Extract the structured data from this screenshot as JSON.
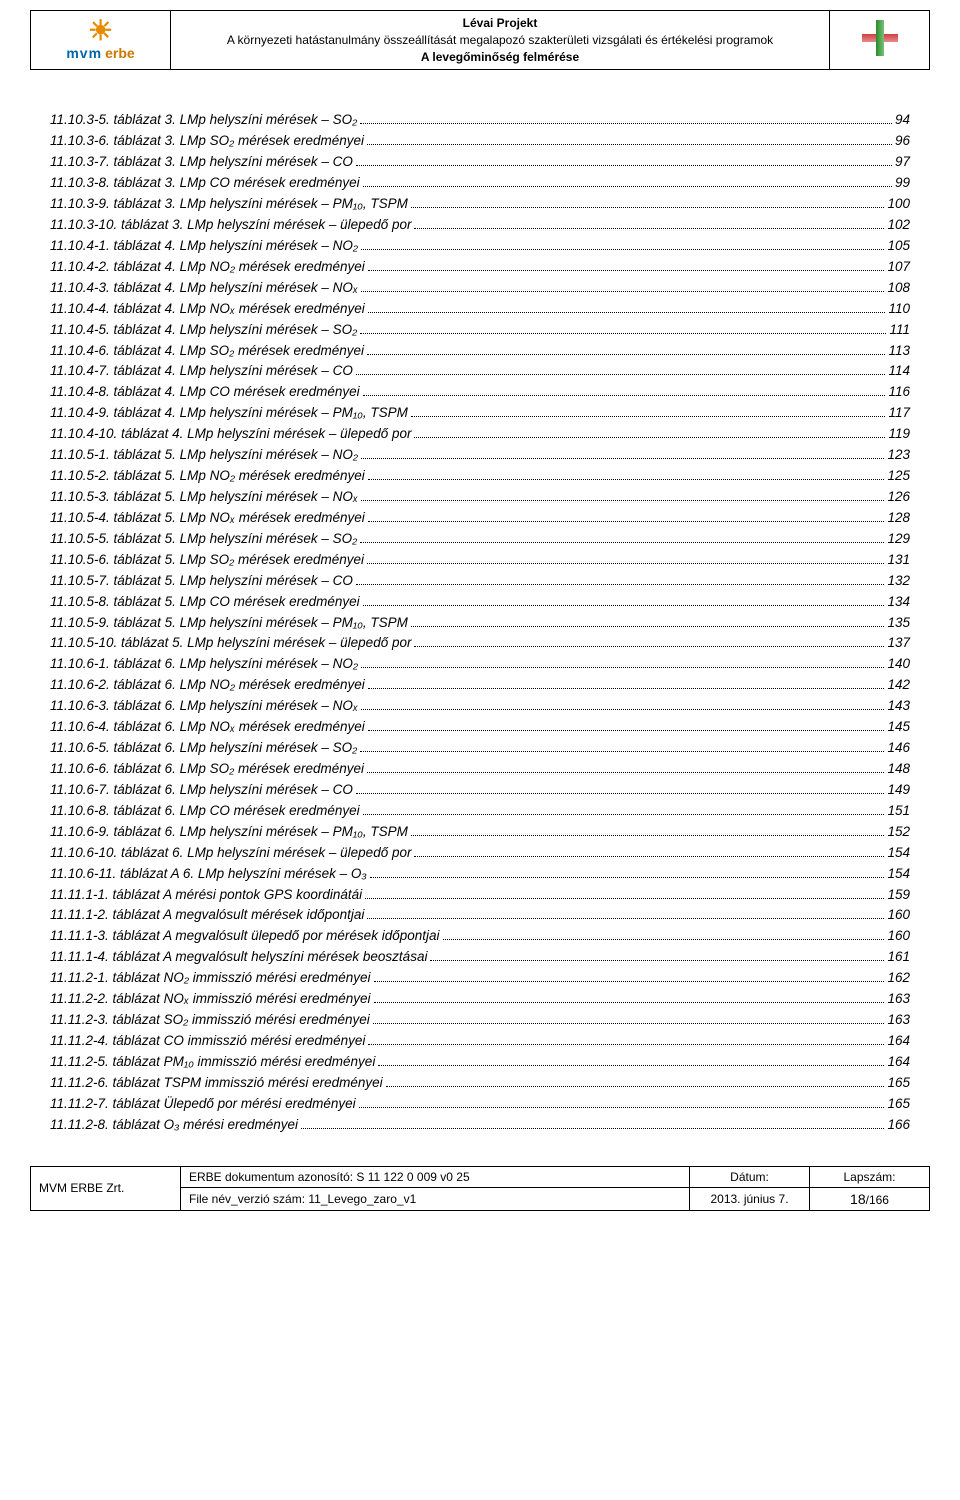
{
  "header": {
    "title_bold": "Lévai Projekt",
    "title_line2": "A környezeti hatástanulmány összeállítását megalapozó szakterületi vizsgálati és értékelési programok",
    "title_line3": "A levegőminőség felmérése",
    "mvm": "mvm",
    "erbe": "erbe"
  },
  "toc": [
    {
      "label": "11.10.3-5. táblázat 3. LMp helyszíni mérések – SO₂",
      "page": "94"
    },
    {
      "label": "11.10.3-6. táblázat 3. LMp SO₂ mérések eredményei",
      "page": "96"
    },
    {
      "label": "11.10.3-7. táblázat 3. LMp helyszíni mérések – CO",
      "page": "97"
    },
    {
      "label": "11.10.3-8. táblázat 3. LMp CO mérések eredményei",
      "page": "99"
    },
    {
      "label": "11.10.3-9. táblázat 3. LMp helyszíni mérések – PM₁₀, TSPM",
      "page": "100"
    },
    {
      "label": "11.10.3-10. táblázat 3. LMp helyszíni mérések – ülepedő por",
      "page": "102"
    },
    {
      "label": "11.10.4-1. táblázat 4. LMp helyszíni mérések – NO₂",
      "page": "105"
    },
    {
      "label": "11.10.4-2. táblázat 4. LMp NO₂ mérések eredményei",
      "page": "107"
    },
    {
      "label": "11.10.4-3. táblázat 4. LMp helyszíni mérések – NOₓ",
      "page": "108"
    },
    {
      "label": "11.10.4-4. táblázat 4. LMp NOₓ mérések eredményei",
      "page": "110"
    },
    {
      "label": "11.10.4-5. táblázat 4. LMp helyszíni mérések – SO₂",
      "page": "111"
    },
    {
      "label": "11.10.4-6. táblázat 4. LMp SO₂ mérések eredményei",
      "page": "113"
    },
    {
      "label": "11.10.4-7. táblázat 4. LMp helyszíni mérések – CO",
      "page": "114"
    },
    {
      "label": "11.10.4-8. táblázat 4. LMp CO mérések eredményei",
      "page": "116"
    },
    {
      "label": "11.10.4-9. táblázat 4. LMp helyszíni mérések – PM₁₀, TSPM",
      "page": "117"
    },
    {
      "label": "11.10.4-10. táblázat 4. LMp helyszíni mérések – ülepedő por",
      "page": "119"
    },
    {
      "label": "11.10.5-1. táblázat 5. LMp helyszíni mérések – NO₂",
      "page": "123"
    },
    {
      "label": "11.10.5-2. táblázat 5. LMp NO₂ mérések eredményei",
      "page": "125"
    },
    {
      "label": "11.10.5-3. táblázat 5. LMp helyszíni mérések – NOₓ",
      "page": "126"
    },
    {
      "label": "11.10.5-4. táblázat 5. LMp NOₓ mérések eredményei",
      "page": "128"
    },
    {
      "label": "11.10.5-5. táblázat 5. LMp helyszíni mérések – SO₂",
      "page": "129"
    },
    {
      "label": "11.10.5-6. táblázat 5. LMp SO₂ mérések eredményei",
      "page": "131"
    },
    {
      "label": "11.10.5-7. táblázat 5. LMp helyszíni mérések – CO",
      "page": "132"
    },
    {
      "label": "11.10.5-8. táblázat 5. LMp CO mérések eredményei",
      "page": "134"
    },
    {
      "label": "11.10.5-9. táblázat 5. LMp helyszíni mérések – PM₁₀, TSPM",
      "page": "135"
    },
    {
      "label": "11.10.5-10. táblázat 5. LMp helyszíni mérések – ülepedő por",
      "page": "137"
    },
    {
      "label": "11.10.6-1. táblázat 6. LMp helyszíni mérések – NO₂",
      "page": "140"
    },
    {
      "label": "11.10.6-2. táblázat 6. LMp NO₂ mérések eredményei",
      "page": "142"
    },
    {
      "label": "11.10.6-3. táblázat 6. LMp helyszíni mérések – NOₓ",
      "page": "143"
    },
    {
      "label": "11.10.6-4. táblázat 6. LMp NOₓ mérések eredményei",
      "page": "145"
    },
    {
      "label": "11.10.6-5. táblázat 6. LMp helyszíni mérések – SO₂",
      "page": "146"
    },
    {
      "label": "11.10.6-6. táblázat 6. LMp SO₂ mérések eredményei",
      "page": "148"
    },
    {
      "label": "11.10.6-7. táblázat 6. LMp helyszíni mérések – CO",
      "page": "149"
    },
    {
      "label": "11.10.6-8. táblázat 6. LMp CO mérések eredményei",
      "page": "151"
    },
    {
      "label": "11.10.6-9. táblázat 6. LMp helyszíni mérések – PM₁₀, TSPM",
      "page": "152"
    },
    {
      "label": "11.10.6-10. táblázat 6. LMp helyszíni mérések – ülepedő por",
      "page": "154"
    },
    {
      "label": "11.10.6-11. táblázat A 6. LMp helyszíni mérések – O₃",
      "page": "154"
    },
    {
      "label": "11.11.1-1. táblázat A mérési pontok GPS koordinátái",
      "page": "159"
    },
    {
      "label": "11.11.1-2. táblázat A megvalósult mérések időpontjai",
      "page": "160"
    },
    {
      "label": "11.11.1-3. táblázat A megvalósult ülepedő por mérések időpontjai",
      "page": "160"
    },
    {
      "label": "11.11.1-4. táblázat A megvalósult helyszíni mérések beosztásai",
      "page": "161"
    },
    {
      "label": "11.11.2-1. táblázat NO₂ immisszió mérési eredményei",
      "page": "162"
    },
    {
      "label": "11.11.2-2. táblázat NOₓ immisszió mérési eredményei",
      "page": "163"
    },
    {
      "label": "11.11.2-3. táblázat SO₂ immisszió mérési eredményei",
      "page": "163"
    },
    {
      "label": "11.11.2-4. táblázat CO immisszió mérési eredményei",
      "page": "164"
    },
    {
      "label": "11.11.2-5. táblázat PM₁₀ immisszió mérési eredményei",
      "page": "164"
    },
    {
      "label": "11.11.2-6. táblázat TSPM immisszió mérési eredményei",
      "page": "165"
    },
    {
      "label": "11.11.2-7. táblázat Ülepedő por mérési eredményei",
      "page": "165"
    },
    {
      "label": "11.11.2-8. táblázat O₃ mérési eredményei",
      "page": "166"
    }
  ],
  "footer": {
    "company": "MVM ERBE Zrt.",
    "doc_id_label": "ERBE dokumentum azonosító: S 11 122 0 009 v0 25",
    "file_label": "File név_verzió szám: 11_Levego_zaro_v1",
    "date_label": "Dátum:",
    "date_value": "2013. június 7.",
    "page_label": "Lapszám:",
    "page_current": "18",
    "page_total": "/166"
  }
}
